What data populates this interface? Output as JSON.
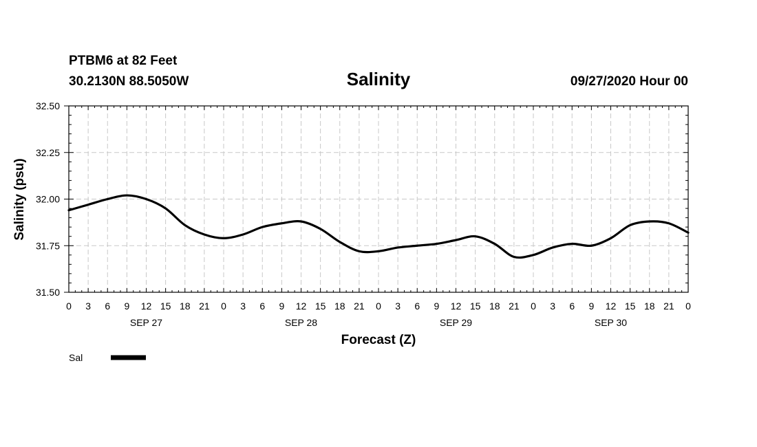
{
  "header": {
    "station": "PTBM6 at 82 Feet",
    "coords": "30.2130N 88.5050W",
    "title": "Salinity",
    "datetime": "09/27/2020 Hour 00"
  },
  "chart_data": {
    "type": "line",
    "title": "Salinity",
    "xlabel": "Forecast (Z)",
    "ylabel": "Salinity (psu)",
    "ylim": [
      31.5,
      32.5
    ],
    "yticks": [
      "31.50",
      "31.75",
      "32.00",
      "32.25",
      "32.50"
    ],
    "xlim": [
      0,
      96
    ],
    "xtick_labels": [
      "0",
      "3",
      "6",
      "9",
      "12",
      "15",
      "18",
      "21",
      "0",
      "3",
      "6",
      "9",
      "12",
      "15",
      "18",
      "21",
      "0",
      "3",
      "6",
      "9",
      "12",
      "15",
      "18",
      "21",
      "0",
      "3",
      "6",
      "9",
      "12",
      "15",
      "18",
      "21",
      "0"
    ],
    "date_labels": [
      {
        "label": "SEP 27",
        "hour": 12
      },
      {
        "label": "SEP 28",
        "hour": 36
      },
      {
        "label": "SEP 29",
        "hour": 60
      },
      {
        "label": "SEP 30",
        "hour": 84
      }
    ],
    "grid": true,
    "legend": [
      {
        "name": "Sal",
        "color": "#000000"
      }
    ],
    "series": [
      {
        "name": "Sal",
        "color": "#000000",
        "x": [
          0,
          3,
          6,
          9,
          12,
          15,
          18,
          21,
          24,
          27,
          30,
          33,
          36,
          39,
          42,
          45,
          48,
          51,
          54,
          57,
          60,
          63,
          66,
          69,
          72,
          75,
          78,
          81,
          84,
          87,
          90,
          93,
          96
        ],
        "values": [
          31.94,
          31.97,
          32.0,
          32.02,
          32.0,
          31.95,
          31.86,
          31.81,
          31.79,
          31.81,
          31.85,
          31.87,
          31.88,
          31.84,
          31.77,
          31.72,
          31.72,
          31.74,
          31.75,
          31.76,
          31.78,
          31.8,
          31.76,
          31.69,
          31.7,
          31.74,
          31.76,
          31.75,
          31.79,
          31.86,
          31.88,
          31.87,
          31.82
        ]
      }
    ]
  }
}
